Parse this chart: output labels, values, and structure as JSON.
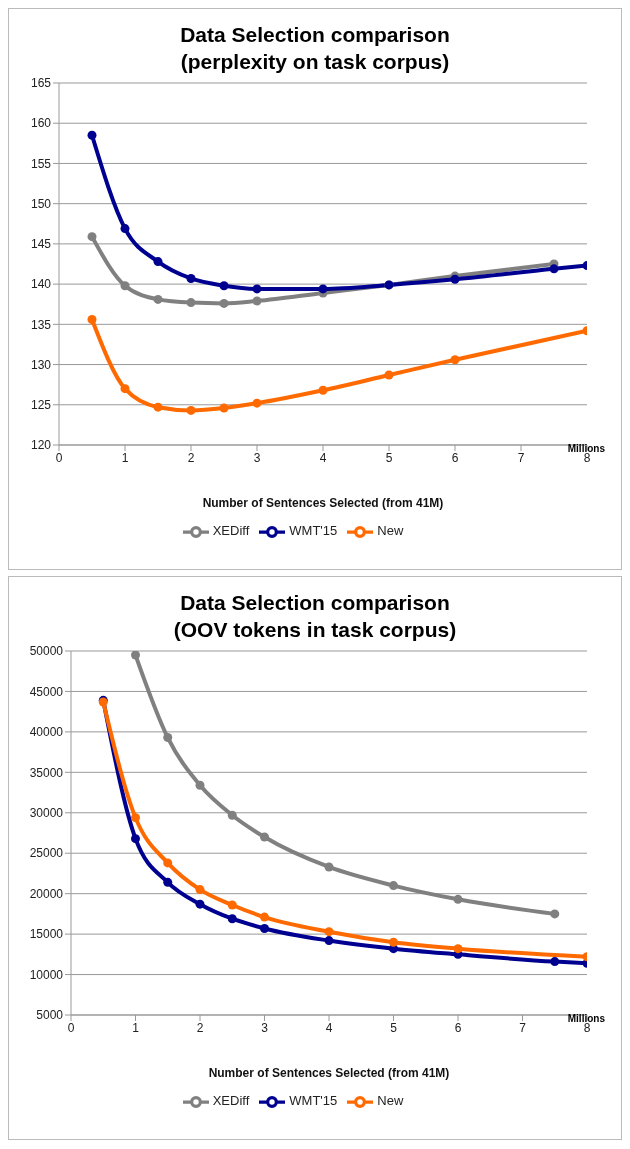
{
  "chart_data": [
    {
      "type": "line",
      "title": "Data Selection comparison",
      "subtitle": "(perplexity on task corpus)",
      "xlabel": "Number of Sentences Selected (from 41M)",
      "annotations": [
        "Millions"
      ],
      "xlim": [
        0,
        8
      ],
      "xticks": [
        0,
        1,
        2,
        3,
        4,
        5,
        6,
        7,
        8
      ],
      "ylim": [
        120,
        165
      ],
      "yticks": [
        120,
        125,
        130,
        135,
        140,
        145,
        150,
        155,
        160,
        165
      ],
      "grid": "y",
      "legend": "bottom",
      "marker": "circle",
      "line_style": "solid",
      "series": [
        {
          "name": "XEDiff",
          "color": "#808080",
          "x": [
            0.5,
            1,
            1.5,
            2,
            2.5,
            3,
            4,
            5,
            6,
            7.5
          ],
          "values": [
            145.9,
            139.8,
            138.1,
            137.7,
            137.6,
            137.9,
            138.9,
            139.9,
            141.0,
            142.5
          ]
        },
        {
          "name": "WMT'15",
          "color": "#000090",
          "x": [
            0.5,
            1,
            1.5,
            2,
            2.5,
            3,
            4,
            5,
            6,
            7.5,
            8
          ],
          "values": [
            158.5,
            146.9,
            142.8,
            140.7,
            139.8,
            139.4,
            139.4,
            139.9,
            140.6,
            141.9,
            142.3
          ]
        },
        {
          "name": "New",
          "color": "#ff6a00",
          "x": [
            0.5,
            1,
            1.5,
            2,
            2.5,
            3,
            4,
            5,
            6,
            8
          ],
          "values": [
            135.6,
            127.0,
            124.7,
            124.3,
            124.6,
            125.2,
            126.8,
            128.7,
            130.6,
            134.2
          ]
        }
      ]
    },
    {
      "type": "line",
      "title": "Data Selection comparison",
      "subtitle": "(OOV tokens in task corpus)",
      "xlabel": "Number of Sentences Selected (from 41M)",
      "annotations": [
        "Millions"
      ],
      "xlim": [
        0,
        8
      ],
      "xticks": [
        0,
        1,
        2,
        3,
        4,
        5,
        6,
        7,
        8
      ],
      "ylim": [
        5000,
        50000
      ],
      "yticks": [
        5000,
        10000,
        15000,
        20000,
        25000,
        30000,
        35000,
        40000,
        45000,
        50000
      ],
      "grid": "y",
      "legend": "bottom",
      "marker": "circle",
      "line_style": "solid",
      "series": [
        {
          "name": "XEDiff",
          "color": "#808080",
          "x": [
            1,
            1.5,
            2,
            2.5,
            3,
            4,
            5,
            6,
            7.5
          ],
          "values": [
            49500,
            39300,
            33400,
            29700,
            27000,
            23300,
            21000,
            19300,
            17500
          ]
        },
        {
          "name": "WMT'15",
          "color": "#000090",
          "x": [
            0.5,
            1,
            1.5,
            2,
            2.5,
            3,
            4,
            5,
            6,
            7.5,
            8
          ],
          "values": [
            43900,
            26800,
            21400,
            18700,
            16900,
            15700,
            14200,
            13200,
            12500,
            11600,
            11400
          ]
        },
        {
          "name": "New",
          "color": "#ff6a00",
          "x": [
            0.5,
            1,
            1.5,
            2,
            2.5,
            3,
            4,
            5,
            6,
            8
          ],
          "values": [
            43700,
            29400,
            23800,
            20500,
            18600,
            17100,
            15300,
            14000,
            13200,
            12200
          ]
        }
      ]
    }
  ]
}
